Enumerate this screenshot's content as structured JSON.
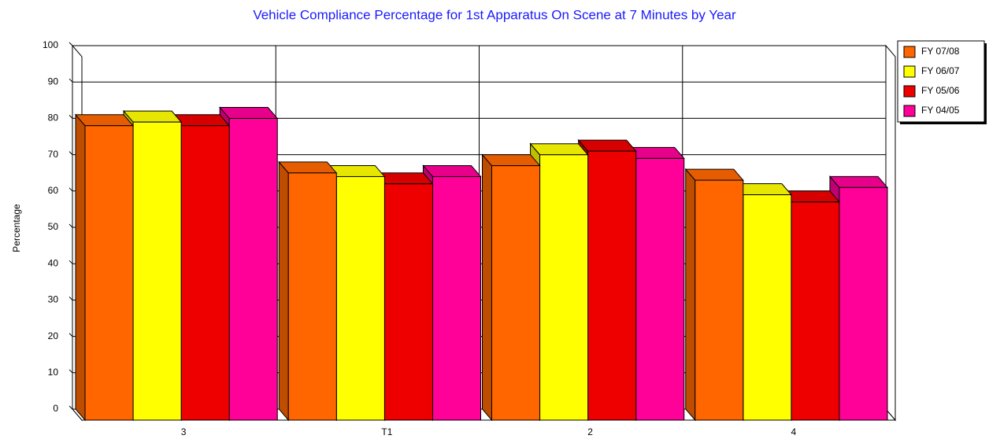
{
  "chart_data": {
    "type": "bar",
    "title": "Vehicle Compliance Percentage for 1st Apparatus On Scene at 7 Minutes by Year",
    "y_label": "Percentage",
    "categories": [
      "3",
      "T1",
      "2",
      "4"
    ],
    "series": [
      {
        "name": "FY 07/08",
        "color": "#ff6600",
        "values": [
          81,
          68,
          70,
          66
        ]
      },
      {
        "name": "FY 06/07",
        "color": "#ffff00",
        "values": [
          82,
          67,
          73,
          62
        ]
      },
      {
        "name": "FY 05/06",
        "color": "#ee0000",
        "values": [
          81,
          65,
          74,
          60
        ]
      },
      {
        "name": "FY 04/05",
        "color": "#ff0099",
        "values": [
          83,
          67,
          72,
          64
        ]
      }
    ],
    "ylim": [
      0,
      100
    ],
    "yticks": [
      0,
      10,
      20,
      30,
      40,
      50,
      60,
      70,
      80,
      90,
      100
    ],
    "grid": true,
    "legend": "right"
  }
}
